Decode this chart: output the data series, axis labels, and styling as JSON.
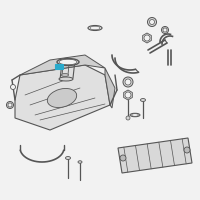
{
  "bg_color": "#f2f2f2",
  "line_color": "#555555",
  "highlight_color": "#29aacc",
  "tank_face_color": "#e0e0e0",
  "tank_top_color": "#d0d0d0",
  "tank_right_color": "#c8c8c8",
  "skid_color": "#d8d8d8",
  "part_color": "#d4d4d4",
  "figsize": [
    2.0,
    2.0
  ],
  "dpi": 100
}
